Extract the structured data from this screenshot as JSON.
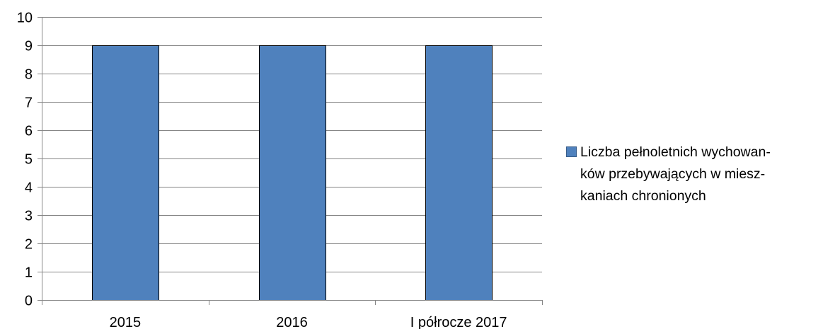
{
  "chart_data": {
    "type": "bar",
    "categories": [
      "2015",
      "2016",
      "I półrocze 2017"
    ],
    "series": [
      {
        "name": "Liczba pełnoletnich wychowan-ków przebywających w miesz-kaniach chronionych",
        "values": [
          9,
          9,
          9
        ]
      }
    ],
    "ylim": [
      0,
      10
    ],
    "yticks": [
      "0",
      "1",
      "2",
      "3",
      "4",
      "5",
      "6",
      "7",
      "8",
      "9",
      "10"
    ],
    "grid": true,
    "legend_position": "right",
    "colors": {
      "bar": "#4f81bd",
      "bar_border": "#000000",
      "grid": "#868686",
      "axis": "#868686"
    }
  },
  "legend": {
    "lines": [
      "Liczba pełnoletnich wychowan-",
      "ków przebywających w miesz-",
      "kaniach chronionych"
    ]
  }
}
